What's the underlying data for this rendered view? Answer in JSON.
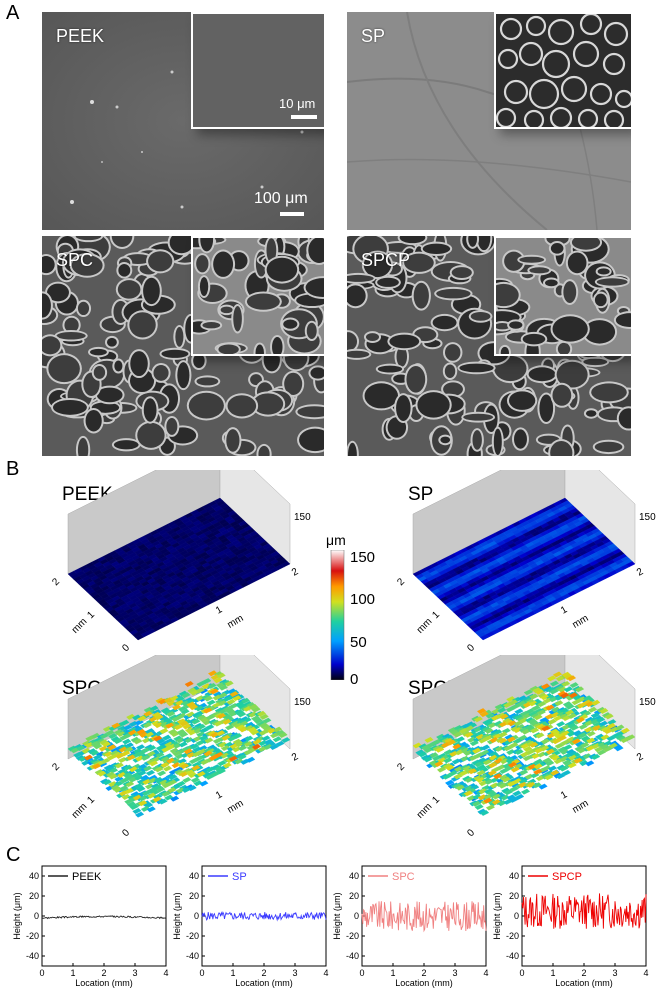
{
  "panels": {
    "a": "A",
    "b": "B",
    "c": "C"
  },
  "sem": [
    {
      "label": "PEEK",
      "texture": "smooth"
    },
    {
      "label": "SP",
      "texture": "smooth-light"
    },
    {
      "label": "SPC",
      "texture": "porous"
    },
    {
      "label": "SPCP",
      "texture": "porous"
    }
  ],
  "scale_bars": {
    "inset": "10 μm",
    "main": "100 μm"
  },
  "surfaces": [
    {
      "title": "PEEK",
      "zmax": "150",
      "xy_ticks": [
        "2",
        "1",
        "0"
      ],
      "x_ticks": [
        "1",
        "2"
      ],
      "unit": "mm"
    },
    {
      "title": "SP",
      "zmax": "150",
      "xy_ticks": [
        "2",
        "1",
        "0"
      ],
      "x_ticks": [
        "1",
        "2"
      ],
      "unit": "mm"
    },
    {
      "title": "SPC",
      "zmax": "150",
      "xy_ticks": [
        "2",
        "1",
        "0"
      ],
      "x_ticks": [
        "1",
        "2"
      ],
      "unit": "mm"
    },
    {
      "title": "SPCP",
      "zmax": "150",
      "xy_ticks": [
        "2",
        "1",
        "0"
      ],
      "x_ticks": [
        "1",
        "2"
      ],
      "unit": "mm"
    }
  ],
  "colorbar": {
    "unit": "μm",
    "ticks": [
      "150",
      "100",
      "50",
      "0"
    ],
    "range": [
      0,
      150
    ]
  },
  "chart_data": [
    {
      "type": "line",
      "series": [
        {
          "name": "PEEK",
          "color": "#222222",
          "x_range": [
            0,
            4
          ],
          "mean": 0,
          "amplitude": 2
        }
      ],
      "xlabel": "Location (mm)",
      "ylabel": "Height (μm)",
      "xlim": [
        0,
        4
      ],
      "ylim": [
        -50,
        50
      ],
      "xticks": [
        "0",
        "1",
        "2",
        "3",
        "4"
      ],
      "yticks": [
        "40",
        "20",
        "0",
        "-20",
        "-40"
      ]
    },
    {
      "type": "line",
      "series": [
        {
          "name": "SP",
          "color": "#3b3bff",
          "x_range": [
            0,
            4
          ],
          "mean": 0,
          "amplitude": 4
        }
      ],
      "xlabel": "Location (mm)",
      "ylabel": "Height (μm)",
      "xlim": [
        0,
        4
      ],
      "ylim": [
        -50,
        50
      ],
      "xticks": [
        "0",
        "1",
        "2",
        "3",
        "4"
      ],
      "yticks": [
        "40",
        "20",
        "0",
        "-20",
        "-40"
      ]
    },
    {
      "type": "line",
      "series": [
        {
          "name": "SPC",
          "color": "#f08080",
          "x_range": [
            0,
            4
          ],
          "mean": 0,
          "amplitude": 15
        }
      ],
      "xlabel": "Location (mm)",
      "ylabel": "Height (μm)",
      "xlim": [
        0,
        4
      ],
      "ylim": [
        -50,
        50
      ],
      "xticks": [
        "0",
        "1",
        "2",
        "3",
        "4"
      ],
      "yticks": [
        "40",
        "20",
        "0",
        "-20",
        "-40"
      ]
    },
    {
      "type": "line",
      "series": [
        {
          "name": "SPCP",
          "color": "#ee0000",
          "x_range": [
            0,
            4
          ],
          "mean": 5,
          "amplitude": 18
        }
      ],
      "xlabel": "Location (mm)",
      "ylabel": "Height (μm)",
      "xlim": [
        0,
        4
      ],
      "ylim": [
        -50,
        50
      ],
      "xticks": [
        "0",
        "1",
        "2",
        "3",
        "4"
      ],
      "yticks": [
        "40",
        "20",
        "0",
        "-20",
        "-40"
      ]
    }
  ]
}
